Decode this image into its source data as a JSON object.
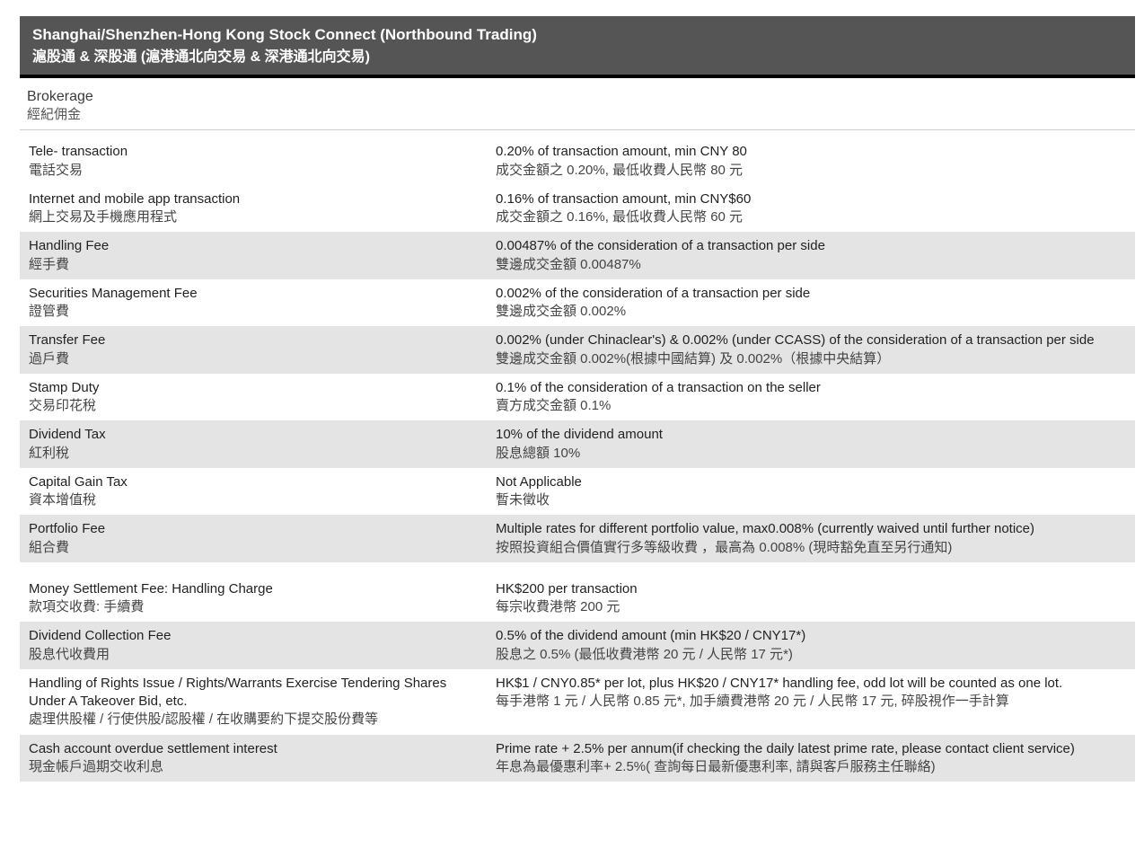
{
  "header": {
    "title_en": "Shanghai/Shenzhen-Hong Kong Stock Connect (Northbound Trading)",
    "title_zh": "滬股通 & 深股通  (滬港通北向交易 & 深港通北向交易)"
  },
  "section": {
    "label_en": "Brokerage",
    "label_zh": "經紀佣金"
  },
  "rows": [
    {
      "alt": false,
      "left_en": "Tele- transaction",
      "left_zh": "電話交易",
      "right_en": "0.20% of transaction amount, min CNY 80",
      "right_zh": "成交金額之 0.20%, 最低收費人民幣 80 元",
      "indent": true
    },
    {
      "alt": false,
      "left_en": "Internet and mobile app transaction",
      "left_zh": "網上交易及手機應用程式",
      "right_en": "0.16% of transaction amount, min CNY$60",
      "right_zh": "成交金額之 0.16%, 最低收費人民幣 60 元",
      "indent": true
    },
    {
      "alt": true,
      "left_en": "Handling Fee",
      "left_zh": "經手費",
      "right_en": "0.00487% of the consideration of a transaction per side",
      "right_zh": "雙邊成交金額 0.00487%"
    },
    {
      "alt": false,
      "left_en": "Securities Management Fee",
      "left_zh": "證管費",
      "right_en": "0.002% of the consideration of a transaction per side",
      "right_zh": "雙邊成交金額 0.002%"
    },
    {
      "alt": true,
      "left_en": "Transfer Fee",
      "left_zh": "過戶費",
      "right_en": "0.002% (under Chinaclear's) & 0.002% (under CCASS) of the consideration of a transaction per side",
      "right_zh": "雙邊成交金額  0.002%(根據中國結算) 及 0.002%（根據中央結算）"
    },
    {
      "alt": false,
      "left_en": "Stamp Duty",
      "left_zh": "交易印花稅",
      "right_en": "0.1% of the consideration of a transaction on the seller",
      "right_zh": "賣方成交金額 0.1%"
    },
    {
      "alt": true,
      "left_en": "Dividend Tax",
      "left_zh": "紅利稅",
      "right_en": "10% of the dividend amount",
      "right_zh": "股息總額 10%"
    },
    {
      "alt": false,
      "left_en": "Capital Gain Tax",
      "left_zh": "資本增值稅",
      "right_en": "Not Applicable",
      "right_zh": "暫未徵收"
    },
    {
      "alt": true,
      "left_en": "Portfolio Fee",
      "left_zh": "組合費",
      "right_en": "Multiple rates for different portfolio value, max0.008% (currently waived until further notice)",
      "right_zh": "按照投資組合價值實行多等級收費  ，最高為 0.008% (現時豁免直至另行通知)"
    },
    {
      "spacer": true
    },
    {
      "alt": false,
      "left_en": "Money Settlement Fee: Handling Charge",
      "left_zh": "款項交收費: 手續費",
      "right_en": "HK$200 per transaction",
      "right_zh": "每宗收費港幣 200 元"
    },
    {
      "alt": true,
      "left_en": "Dividend Collection Fee",
      "left_zh": "股息代收費用",
      "right_en": "0.5% of the dividend amount (min HK$20 / CNY17*)",
      "right_zh": "股息之 0.5% (最低收費港幣 20 元 / 人民幣 17 元*)"
    },
    {
      "alt": false,
      "left_en": "Handling of Rights Issue / Rights/Warrants Exercise Tendering Shares Under A Takeover Bid, etc.",
      "left_zh": "處理供股權 / 行使供股/認股權 / 在收購要約下提交股份費等",
      "right_en": "HK$1 / CNY0.85* per lot, plus HK$20 / CNY17* handling fee, odd lot will be counted as one lot.",
      "right_zh": "每手港幣 1 元 / 人民幣 0.85 元*, 加手續費港幣 20 元 / 人民幣 17 元, 碎股視作一手計算"
    },
    {
      "alt": true,
      "left_en": "Cash account overdue settlement interest",
      "left_zh": "現金帳戶過期交收利息",
      "right_en": "Prime rate + 2.5% per annum(if checking the daily latest prime rate, please contact client service)",
      "right_zh": "年息為最優惠利率+ 2.5%( 查詢每日最新優惠利率, 請與客戶服務主任聯絡)"
    }
  ]
}
